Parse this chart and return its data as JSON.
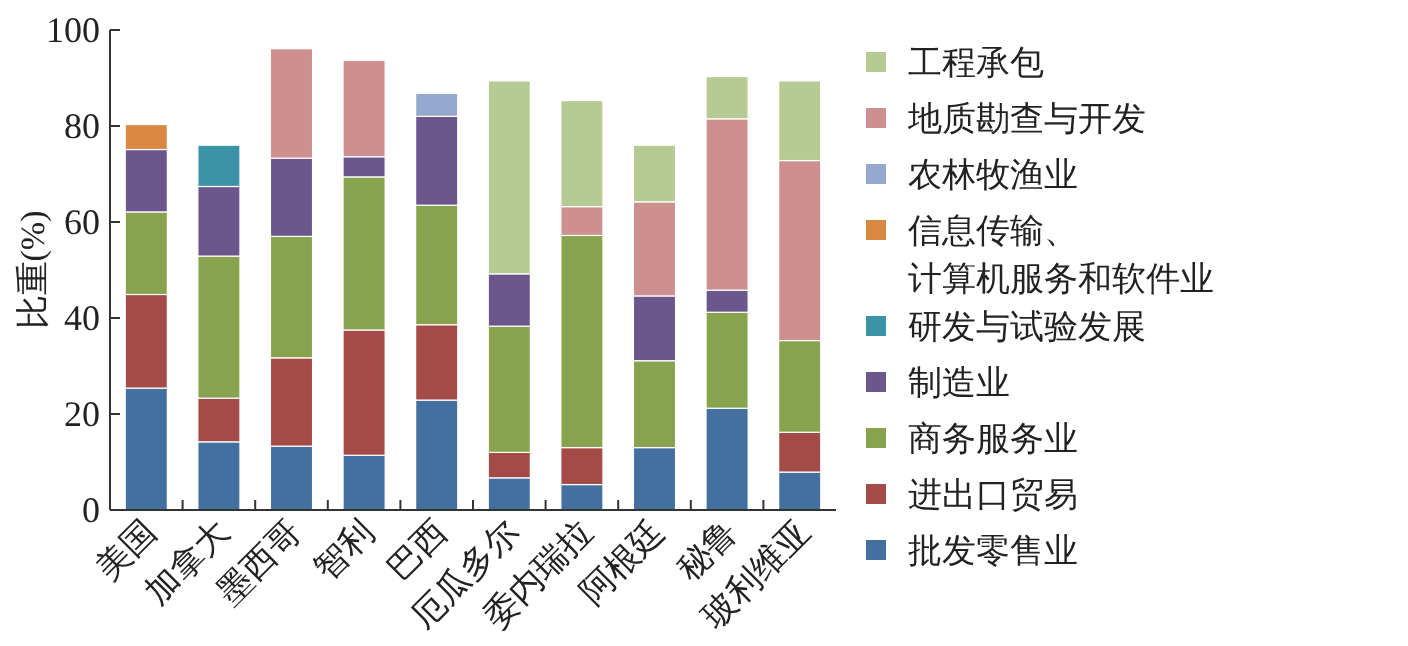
{
  "chart_data": {
    "type": "bar",
    "stacked": true,
    "ylabel": "比重(%)",
    "ylim": [
      0,
      100
    ],
    "yticks": [
      0,
      20,
      40,
      60,
      80,
      100
    ],
    "legend": "right",
    "grid": false,
    "categories": [
      "美国",
      "加拿大",
      "墨西哥",
      "智利",
      "巴西",
      "厄瓜多尔",
      "委内瑞拉",
      "阿根廷",
      "秘鲁",
      "玻利维亚"
    ],
    "series": [
      {
        "name": "批发零售业",
        "color": "#44709f",
        "values": [
          25.4,
          14.2,
          13.3,
          11.4,
          22.9,
          6.7,
          5.3,
          13.0,
          21.2,
          7.9
        ]
      },
      {
        "name": "进出口贸易",
        "color": "#a44a47",
        "values": [
          19.5,
          9.1,
          18.4,
          26.1,
          15.7,
          5.3,
          7.7,
          null,
          null,
          8.3
        ]
      },
      {
        "name": "商务服务业",
        "color": "#87a34e",
        "values": [
          17.2,
          29.6,
          25.3,
          31.9,
          24.9,
          26.3,
          44.2,
          18.1,
          20.0,
          19.1
        ]
      },
      {
        "name": "制造业",
        "color": "#6b578c",
        "values": [
          13.0,
          14.5,
          16.3,
          4.2,
          18.5,
          10.9,
          null,
          13.5,
          4.6,
          null
        ]
      },
      {
        "name": "研发与试验发展",
        "color": "#3c93a8",
        "values": [
          null,
          8.6,
          null,
          null,
          null,
          null,
          null,
          null,
          null,
          null
        ]
      },
      {
        "name": "信息传输、计算机服务和软件业",
        "color": "#d98841",
        "values": [
          5.2,
          null,
          null,
          null,
          null,
          null,
          null,
          null,
          null,
          null
        ]
      },
      {
        "name": "农林牧渔业",
        "color": "#94a9cd",
        "values": [
          null,
          null,
          null,
          null,
          4.8,
          null,
          null,
          null,
          null,
          null
        ]
      },
      {
        "name": "地质勘查与开发",
        "color": "#ce8f8f",
        "values": [
          null,
          null,
          22.8,
          20.1,
          null,
          null,
          6.0,
          19.6,
          35.7,
          37.5
        ]
      },
      {
        "name": "工程承包",
        "color": "#b6ca94",
        "values": [
          null,
          null,
          null,
          null,
          null,
          40.2,
          22.1,
          11.8,
          8.8,
          16.6
        ]
      }
    ]
  }
}
